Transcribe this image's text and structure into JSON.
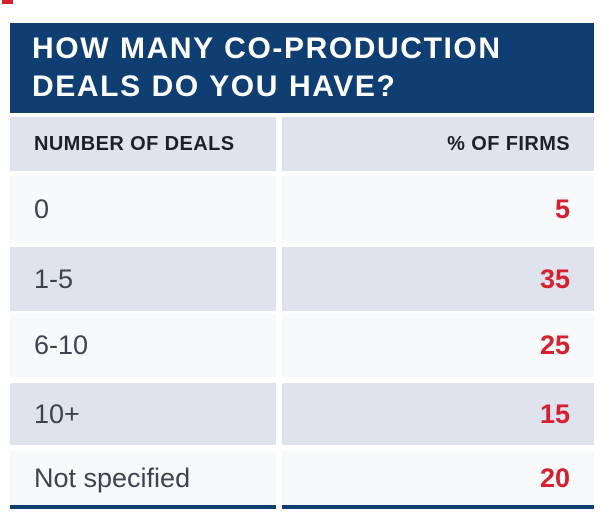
{
  "title": {
    "line1": "HOW MANY CO-PRODUCTION",
    "line2": "DEALS DO YOU HAVE?"
  },
  "table": {
    "col_left": "NUMBER OF DEALS",
    "col_right": "% OF FIRMS",
    "rows": [
      {
        "label": "0",
        "value": "5"
      },
      {
        "label": "1-5",
        "value": "35"
      },
      {
        "label": "6-10",
        "value": "25"
      },
      {
        "label": "10+",
        "value": "15"
      },
      {
        "label": "Not specified",
        "value": "20"
      }
    ]
  },
  "colors": {
    "navy": "#0e3e72",
    "accent_red": "#d7202d",
    "row_light": "#f8f9fb",
    "row_shaded": "#dfe3ee",
    "label_text": "#3d4350",
    "col_header_text": "#1c202b",
    "title_text": "#ffffff"
  },
  "chart_data": {
    "type": "table",
    "title": "HOW MANY CO-PRODUCTION DEALS DO YOU HAVE?",
    "columns": [
      "NUMBER OF DEALS",
      "% OF FIRMS"
    ],
    "categories": [
      "0",
      "1-5",
      "6-10",
      "10+",
      "Not specified"
    ],
    "values": [
      5,
      35,
      25,
      15,
      20
    ],
    "value_unit": "% of firms"
  }
}
